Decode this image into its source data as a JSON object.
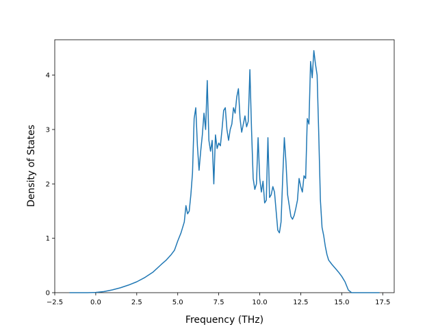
{
  "chart_data": {
    "type": "line",
    "title": "",
    "xlabel": "Frequency (THz)",
    "ylabel": "Density of States",
    "xlim": [
      -2.5,
      18.2
    ],
    "ylim": [
      0,
      4.65
    ],
    "grid": false,
    "legend": "none",
    "line_color": "#1f77b4",
    "x_ticks": [
      -2.5,
      0.0,
      2.5,
      5.0,
      7.5,
      10.0,
      12.5,
      15.0,
      17.5
    ],
    "x_tick_labels": [
      "−2.5",
      "0.0",
      "2.5",
      "5.0",
      "7.5",
      "10.0",
      "12.5",
      "15.0",
      "17.5"
    ],
    "y_ticks": [
      0,
      1,
      2,
      3,
      4
    ],
    "y_tick_labels": [
      "0",
      "1",
      "2",
      "3",
      "4"
    ],
    "series": [
      {
        "x": [
          -1.6,
          -1.0,
          -0.5,
          0.0,
          0.5,
          1.0,
          1.5,
          2.0,
          2.5,
          3.0,
          3.5,
          4.0,
          4.3,
          4.6,
          4.8,
          5.0,
          5.2,
          5.4,
          5.5,
          5.6,
          5.7,
          5.8,
          5.9,
          6.0,
          6.1,
          6.2,
          6.3,
          6.4,
          6.5,
          6.6,
          6.7,
          6.8,
          6.9,
          7.0,
          7.1,
          7.2,
          7.3,
          7.4,
          7.5,
          7.6,
          7.7,
          7.8,
          7.9,
          8.0,
          8.1,
          8.2,
          8.3,
          8.4,
          8.5,
          8.6,
          8.7,
          8.8,
          8.9,
          9.0,
          9.1,
          9.2,
          9.3,
          9.4,
          9.5,
          9.6,
          9.7,
          9.8,
          9.9,
          10.0,
          10.1,
          10.2,
          10.3,
          10.4,
          10.5,
          10.6,
          10.7,
          10.8,
          10.9,
          11.0,
          11.1,
          11.2,
          11.3,
          11.4,
          11.5,
          11.6,
          11.7,
          11.8,
          11.9,
          12.0,
          12.1,
          12.2,
          12.3,
          12.4,
          12.5,
          12.6,
          12.7,
          12.8,
          12.9,
          13.0,
          13.1,
          13.2,
          13.3,
          13.4,
          13.5,
          13.6,
          13.7,
          13.8,
          13.9,
          14.0,
          14.1,
          14.2,
          14.4,
          14.6,
          14.8,
          15.0,
          15.2,
          15.4,
          15.6,
          15.7,
          16.0,
          16.5,
          17.0,
          17.3
        ],
        "y": [
          0,
          0,
          0,
          0.005,
          0.02,
          0.05,
          0.09,
          0.14,
          0.2,
          0.28,
          0.38,
          0.52,
          0.6,
          0.7,
          0.78,
          0.95,
          1.1,
          1.3,
          1.6,
          1.45,
          1.5,
          1.8,
          2.2,
          3.2,
          3.4,
          2.7,
          2.25,
          2.6,
          2.9,
          3.3,
          3.0,
          3.9,
          2.8,
          2.6,
          2.8,
          2.0,
          2.9,
          2.65,
          2.75,
          2.7,
          3.0,
          3.35,
          3.4,
          3.0,
          2.8,
          3.0,
          3.1,
          3.4,
          3.3,
          3.6,
          3.75,
          3.2,
          2.95,
          3.1,
          3.25,
          3.05,
          3.15,
          4.1,
          3.0,
          2.1,
          1.9,
          2.0,
          2.85,
          2.1,
          1.85,
          2.05,
          1.65,
          1.7,
          2.85,
          1.75,
          1.8,
          1.95,
          1.85,
          1.5,
          1.15,
          1.1,
          1.3,
          2.1,
          2.85,
          2.4,
          1.8,
          1.6,
          1.4,
          1.35,
          1.42,
          1.55,
          1.7,
          2.1,
          1.95,
          1.85,
          2.15,
          2.1,
          3.2,
          3.1,
          4.25,
          3.95,
          4.45,
          4.2,
          4.0,
          2.9,
          1.7,
          1.2,
          1.05,
          0.85,
          0.7,
          0.6,
          0.52,
          0.45,
          0.38,
          0.3,
          0.2,
          0.05,
          0,
          0,
          0,
          0,
          0,
          0
        ]
      }
    ]
  }
}
